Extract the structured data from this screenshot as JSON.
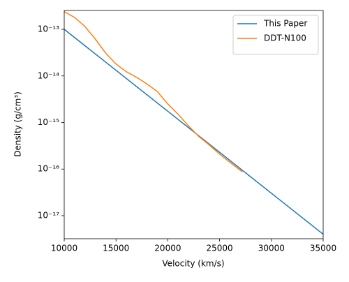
{
  "chart_data": {
    "type": "line",
    "xlabel": "Velocity (km/s)",
    "ylabel": "Density (g/cm³)",
    "xlim": [
      10000,
      35000
    ],
    "xticks": [
      10000,
      15000,
      20000,
      25000,
      30000,
      35000
    ],
    "ylim": [
      3.2e-18,
      2.54e-13
    ],
    "yscale": "log",
    "yticks": [
      {
        "value": 1e-17,
        "label": "10⁻¹⁷"
      },
      {
        "value": 1e-16,
        "label": "10⁻¹⁶"
      },
      {
        "value": 1e-15,
        "label": "10⁻¹⁵"
      },
      {
        "value": 1e-14,
        "label": "10⁻¹⁴"
      },
      {
        "value": 1e-13,
        "label": "10⁻¹³"
      }
    ],
    "legend": "upper right",
    "series": [
      {
        "name": "This Paper",
        "color": "#1f77b4",
        "x": [
          10000,
          35000
        ],
        "values": [
          1e-13,
          4e-18
        ]
      },
      {
        "name": "DDT-N100",
        "color": "#ff7f0e",
        "x": [
          10000,
          11000,
          12000,
          13000,
          14000,
          15000,
          16000,
          17000,
          18000,
          19000,
          20000,
          21000,
          22000,
          23000,
          24000,
          25000,
          26000,
          27200
        ],
        "values": [
          2.4e-13,
          1.8e-13,
          1.15e-13,
          6.2e-14,
          3.1e-14,
          1.8e-14,
          1.23e-14,
          9.3e-15,
          6.7e-15,
          4.6e-15,
          2.5e-15,
          1.5e-15,
          8.4e-16,
          5e-16,
          3.3e-16,
          2.1e-16,
          1.4e-16,
          8.7e-17
        ]
      }
    ]
  }
}
